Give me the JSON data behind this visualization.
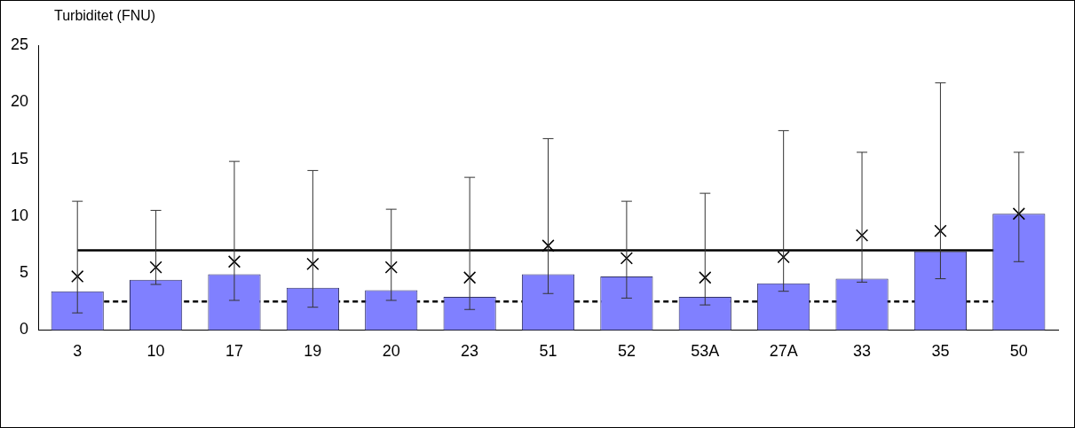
{
  "chart_data": {
    "type": "bar",
    "ylabel": "Turbiditet (FNU)",
    "categories": [
      "3",
      "10",
      "17",
      "19",
      "20",
      "23",
      "51",
      "52",
      "53A",
      "27A",
      "33",
      "35",
      "50"
    ],
    "series": [
      {
        "color": "#8080ff",
        "values": [
          3.4,
          4.4,
          4.9,
          3.7,
          3.5,
          2.9,
          4.9,
          4.7,
          2.9,
          4.1,
          4.5,
          6.9,
          10.2
        ],
        "errors": [
          [
            1.5,
            11.3
          ],
          [
            4.0,
            10.5
          ],
          [
            2.6,
            14.8
          ],
          [
            2.0,
            14.0
          ],
          [
            2.6,
            10.6
          ],
          [
            1.8,
            13.4
          ],
          [
            3.2,
            16.8
          ],
          [
            2.8,
            11.3
          ],
          [
            2.2,
            12.0
          ],
          [
            3.4,
            17.5
          ],
          [
            4.2,
            15.6
          ],
          [
            4.5,
            21.7
          ],
          [
            6.0,
            15.6
          ]
        ]
      },
      {
        "type": "scatter",
        "color": "#000000",
        "marker": "cross",
        "x": [
          "3",
          "10",
          "17",
          "19",
          "20",
          "23",
          "51",
          "52",
          "53A",
          "27A",
          "33",
          "35",
          "50"
        ],
        "values": [
          4.7,
          5.5,
          6.0,
          5.8,
          5.5,
          4.6,
          7.4,
          6.3,
          4.6,
          6.4,
          8.3,
          8.7,
          10.2
        ]
      }
    ],
    "ref_lines": [
      {
        "axis": "y",
        "value": 7,
        "color": "#000000",
        "line_style": "solid"
      },
      {
        "axis": "y",
        "value": 2.5,
        "color": "#000000",
        "line_style": "dashed"
      }
    ],
    "ylim": [
      0,
      25
    ],
    "yticks": [
      0,
      5,
      10,
      15,
      20,
      25
    ],
    "grid": false,
    "legend": false
  }
}
